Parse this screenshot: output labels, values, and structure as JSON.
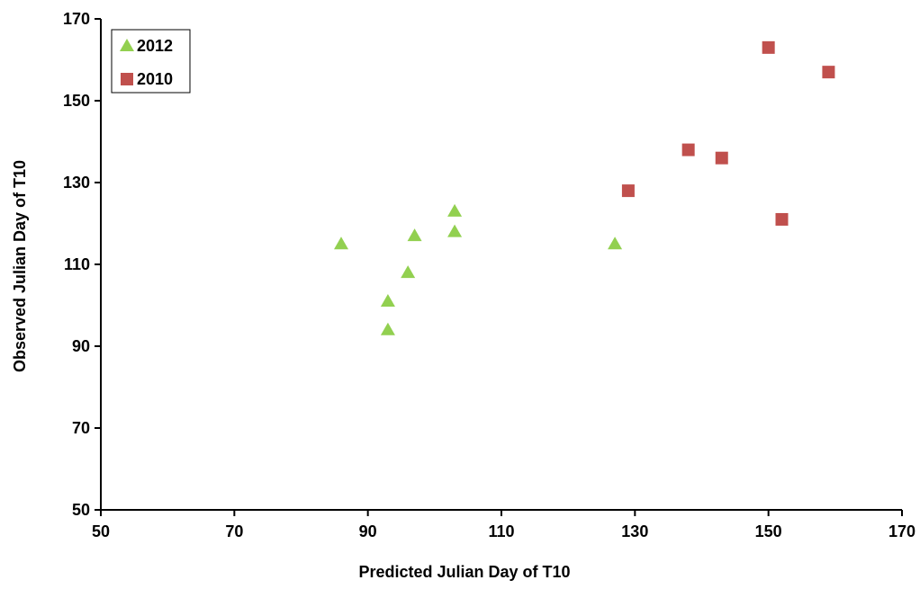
{
  "chart_data": {
    "type": "scatter",
    "title": "",
    "xlabel": "Predicted Julian Day of T10",
    "ylabel": "Observed Julian Day of T10",
    "xlim": [
      50,
      170
    ],
    "ylim": [
      50,
      170
    ],
    "xticks": [
      50,
      70,
      90,
      110,
      130,
      150,
      170
    ],
    "yticks": [
      50,
      70,
      90,
      110,
      130,
      150,
      170
    ],
    "grid": false,
    "legend_position": "top-left",
    "series": [
      {
        "name": "2012",
        "marker": "triangle",
        "color": "#92D050",
        "points": [
          {
            "x": 86,
            "y": 115
          },
          {
            "x": 93,
            "y": 94
          },
          {
            "x": 93,
            "y": 101
          },
          {
            "x": 96,
            "y": 108
          },
          {
            "x": 97,
            "y": 117
          },
          {
            "x": 103,
            "y": 118
          },
          {
            "x": 103,
            "y": 123
          },
          {
            "x": 127,
            "y": 115
          }
        ]
      },
      {
        "name": "2010",
        "marker": "square",
        "color": "#C0504D",
        "points": [
          {
            "x": 129,
            "y": 128
          },
          {
            "x": 138,
            "y": 138
          },
          {
            "x": 143,
            "y": 136
          },
          {
            "x": 150,
            "y": 163
          },
          {
            "x": 152,
            "y": 121
          },
          {
            "x": 159,
            "y": 157
          }
        ]
      }
    ]
  }
}
